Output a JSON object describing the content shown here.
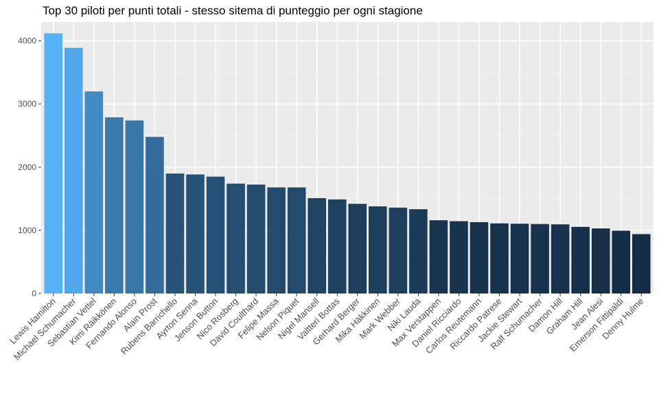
{
  "chart_data": {
    "type": "bar",
    "title": "Top 30 piloti per punti totali - stesso sitema di punteggio per ogni stagione",
    "xlabel": "",
    "ylabel": "",
    "ylim": [
      0,
      4300
    ],
    "yticks": [
      0,
      1000,
      2000,
      3000,
      4000
    ],
    "grid": true,
    "legend": "none",
    "color_scale": {
      "low": "#132b43",
      "high": "#56b1f7"
    },
    "categories": [
      "Lewis Hamilton",
      "Michael Schumacher",
      "Sebastian Vettel",
      "Kimi Räikkönen",
      "Fernando Alonso",
      "Alain Prost",
      "Rubens Barrichello",
      "Ayrton Senna",
      "Jenson Button",
      "Nico Rosberg",
      "David Coulthard",
      "Felipe Massa",
      "Nelson Piquet",
      "Nigel Mansell",
      "Valtteri Bottas",
      "Gerhard Berger",
      "Mika Häkkinen",
      "Mark Webber",
      "Niki Lauda",
      "Max Verstappen",
      "Daniel Ricciardo",
      "Carlos Reutemann",
      "Riccardo Patrese",
      "Jackie Stewart",
      "Ralf Schumacher",
      "Damon Hill",
      "Graham Hill",
      "Jean Alesi",
      "Emerson Fittipaldi",
      "Denny Hulme"
    ],
    "values": [
      4120,
      3890,
      3200,
      2790,
      2740,
      2480,
      1900,
      1885,
      1850,
      1740,
      1725,
      1680,
      1680,
      1510,
      1490,
      1420,
      1380,
      1360,
      1335,
      1160,
      1145,
      1130,
      1110,
      1105,
      1100,
      1095,
      1055,
      1030,
      995,
      940
    ]
  }
}
